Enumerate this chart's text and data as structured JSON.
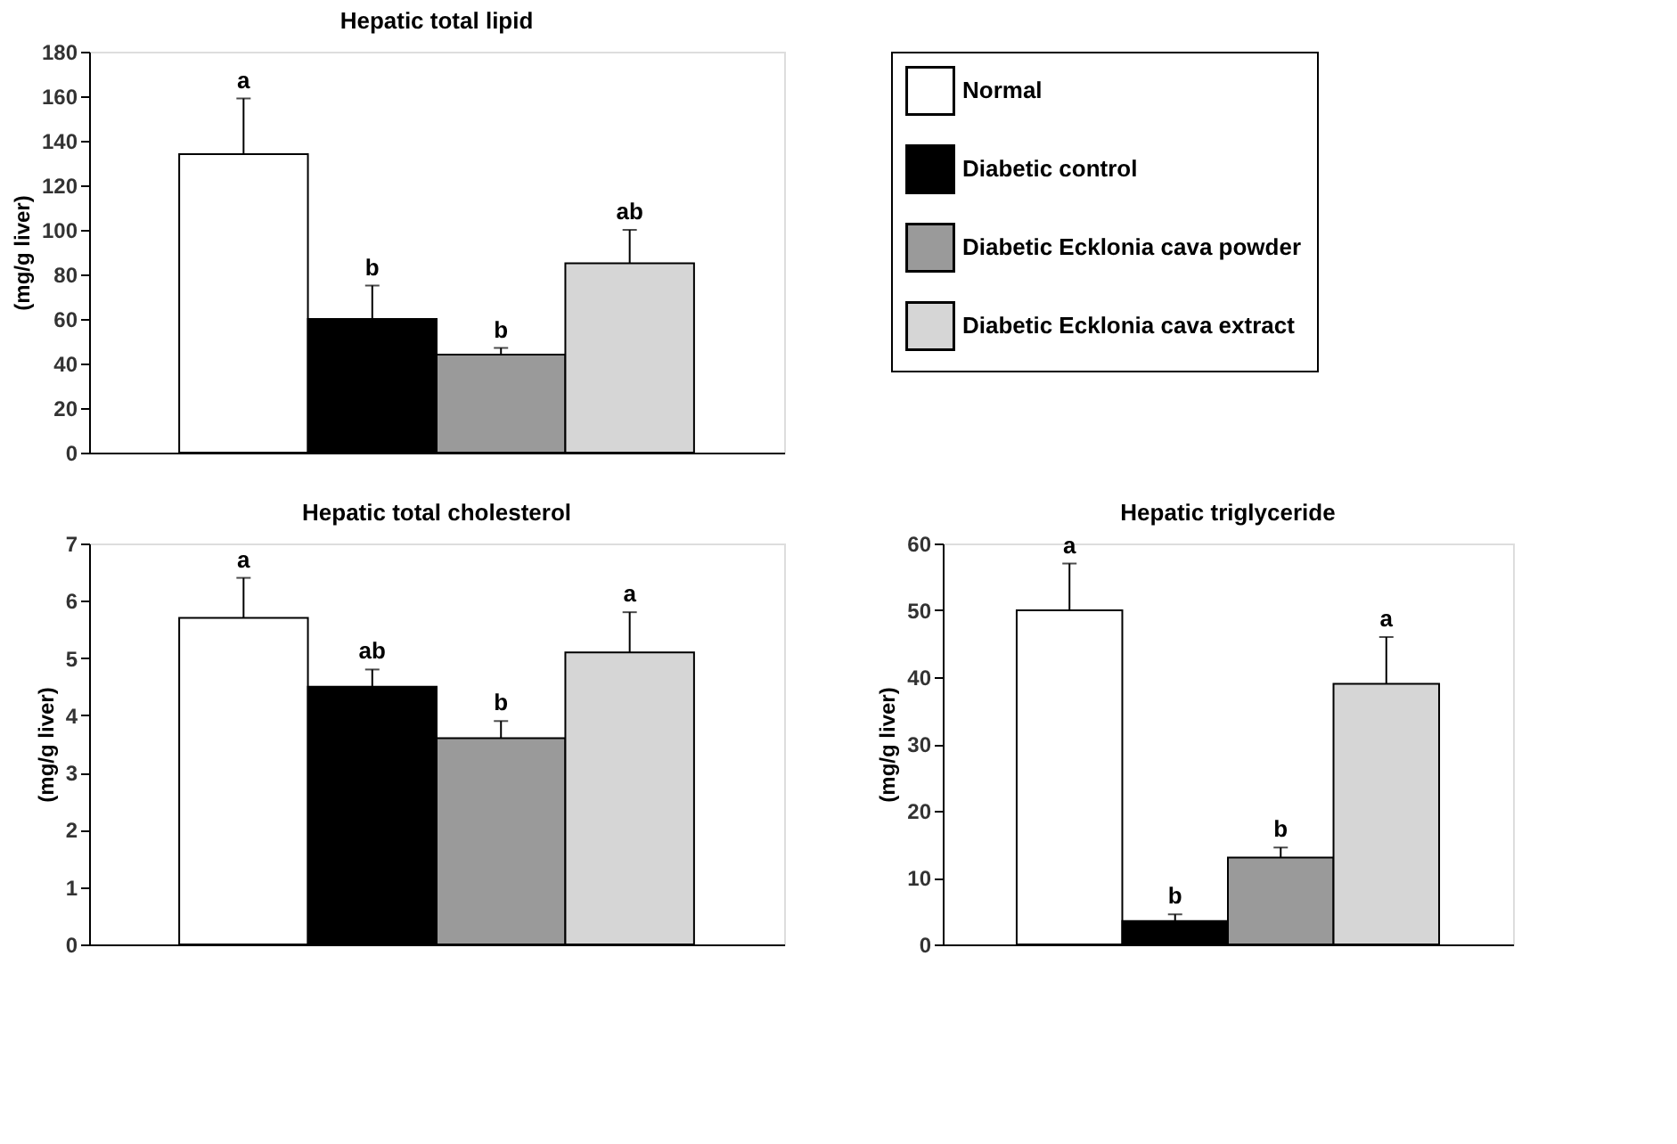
{
  "chart_data": [
    {
      "type": "bar",
      "title": "Hepatic total lipid",
      "ylabel": "(mg/g liver)",
      "categories": [
        null
      ],
      "ylim": [
        0,
        180
      ],
      "yticks": [
        0,
        20,
        40,
        60,
        80,
        100,
        120,
        140,
        160,
        180
      ],
      "grid": false,
      "legend": "right",
      "series": [
        {
          "name": "Normal",
          "color": "#ffffff",
          "values": [
            134
          ],
          "errors": [
            [
              134,
              159
            ]
          ]
        },
        {
          "name": "Diabetic control",
          "color": "#000000",
          "values": [
            60
          ],
          "errors": [
            [
              60,
              75
            ]
          ]
        },
        {
          "name": "Diabetic Ecklonia cava powder",
          "color": "#9a9a9a",
          "values": [
            44
          ],
          "errors": [
            [
              44,
              47
            ]
          ]
        },
        {
          "name": "Diabetic Ecklonia cava extract",
          "color": "#d6d6d6",
          "values": [
            85
          ],
          "errors": [
            [
              85,
              100
            ]
          ]
        }
      ],
      "annotations": [
        "a",
        "b",
        "b",
        "ab"
      ]
    },
    {
      "type": "bar",
      "title": "Hepatic total cholesterol",
      "ylabel": "(mg/g liver)",
      "categories": [
        null
      ],
      "ylim": [
        0,
        7
      ],
      "yticks": [
        0,
        1,
        2,
        3,
        4,
        5,
        6,
        7
      ],
      "grid": false,
      "legend": false,
      "series": [
        {
          "color": "#ffffff",
          "values": [
            5.7
          ],
          "errors": [
            [
              5.7,
              6.4
            ]
          ]
        },
        {
          "color": "#000000",
          "values": [
            4.5
          ],
          "errors": [
            [
              4.5,
              4.8
            ]
          ]
        },
        {
          "color": "#9a9a9a",
          "values": [
            3.6
          ],
          "errors": [
            [
              3.6,
              3.9
            ]
          ]
        },
        {
          "color": "#d6d6d6",
          "values": [
            5.1
          ],
          "errors": [
            [
              5.1,
              5.8
            ]
          ]
        }
      ],
      "annotations": [
        "a",
        "ab",
        "b",
        "a"
      ]
    },
    {
      "type": "bar",
      "title": "Hepatic triglyceride",
      "ylabel": "(mg/g liver)",
      "categories": [
        null
      ],
      "ylim": [
        0,
        60
      ],
      "yticks": [
        0,
        10,
        20,
        30,
        40,
        50,
        60
      ],
      "grid": false,
      "legend": false,
      "series": [
        {
          "color": "#ffffff",
          "values": [
            50
          ],
          "errors": [
            [
              50,
              57
            ]
          ]
        },
        {
          "color": "#000000",
          "values": [
            3.5
          ],
          "errors": [
            [
              3.5,
              4.5
            ]
          ]
        },
        {
          "color": "#9a9a9a",
          "values": [
            13
          ],
          "errors": [
            [
              13,
              14.5
            ]
          ]
        },
        {
          "color": "#d6d6d6",
          "values": [
            39
          ],
          "errors": [
            [
              39,
              46
            ]
          ]
        }
      ],
      "annotations": [
        "a",
        "b",
        "b",
        "a"
      ]
    }
  ]
}
